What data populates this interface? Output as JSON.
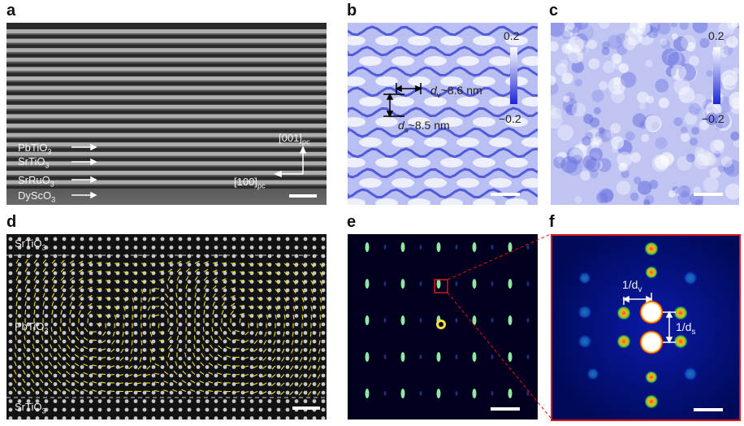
{
  "panels": {
    "a": {
      "letter": "a",
      "layers": [
        {
          "formula": "PbTiO",
          "sub": "3"
        },
        {
          "formula": "SrTiO",
          "sub": "3"
        },
        {
          "formula": "SrRuO",
          "sub": "3"
        },
        {
          "formula": "DyScO",
          "sub": "3"
        }
      ],
      "axis_001": "[001]",
      "axis_001_sub": "pc",
      "axis_100": "[100]",
      "axis_100_sub": "pc"
    },
    "b": {
      "letter": "b",
      "cb_top": "0.2",
      "cb_bottom": "−0.2",
      "dv_prefix": "d",
      "dv_sub": "v",
      "dv_value": "~8.6 nm",
      "ds_prefix": "d",
      "ds_sub": "s",
      "ds_value": "~8.5 nm"
    },
    "c": {
      "letter": "c",
      "cb_top": "0.2",
      "cb_bottom": "−0.2"
    },
    "d": {
      "letter": "d",
      "top_label": "SrTiO",
      "top_sub": "3",
      "mid_label": "PbTiO",
      "mid_sub": "3",
      "bot_label": "SrTiO",
      "bot_sub": "3"
    },
    "e": {
      "letter": "e"
    },
    "f": {
      "letter": "f",
      "inv_dv_prefix": "1/d",
      "inv_dv_sub": "v",
      "inv_ds_prefix": "1/d",
      "inv_ds_sub": "s"
    }
  },
  "colors": {
    "stem_background": "#2a2a2a",
    "map_blue": "#4a55d8",
    "fft_background": "#00001e",
    "highlight_red": "#e01515",
    "vector_yellow": "#f0e020"
  }
}
